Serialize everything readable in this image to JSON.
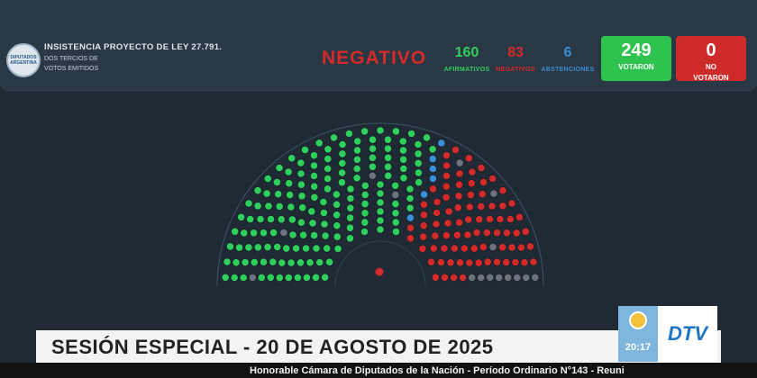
{
  "header": {
    "logo_text": "DIPUTADOS ARGENTINA",
    "title": "INSISTENCIA PROYECTO DE LEY 27.791.",
    "subtitle_line1": "DOS TERCIOS DE",
    "subtitle_line2": "VOTOS EMITIDOS",
    "result": "NEGATIVO"
  },
  "counts": {
    "afirmativos": {
      "value": "160",
      "label": "AFIRMATIVOS"
    },
    "negativos": {
      "value": "83",
      "label": "NEGATIVOS"
    },
    "abstenciones": {
      "value": "6",
      "label": "ABSTENCIONES"
    }
  },
  "totals": {
    "votaron": {
      "value": "249",
      "label": "VOTARON"
    },
    "no_votaron": {
      "value": "0",
      "label_line1": "NO",
      "label_line2": "VOTARON"
    }
  },
  "colors": {
    "affirmative": "#2fcf5c",
    "negative": "#d42a2a",
    "abstention": "#3a8fd8",
    "absent": "#6b737b"
  },
  "hemicycle": {
    "rows": 12,
    "seats_total": 257,
    "affirmative": 160,
    "negative": 83,
    "abstention": 6,
    "absent": 8
  },
  "footer": {
    "session": "SESIÓN ESPECIAL - 20 DE AGOSTO DE 2025",
    "time": "20:17",
    "channel": "DTV",
    "ticker": "Honorable Cámara de Diputados de la Nación - Período Ordinario N°143 - Reuni"
  }
}
